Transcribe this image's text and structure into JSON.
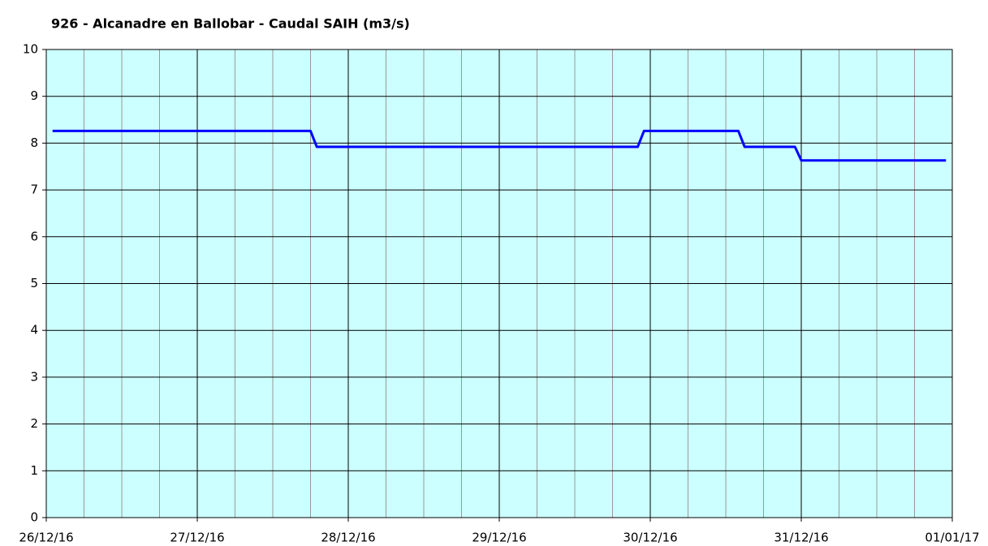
{
  "chart_data": {
    "type": "line",
    "title": "926 - Alcanadre en Ballobar - Caudal SAIH (m3/s)",
    "x": [
      "2016-12-26T01:00",
      "2016-12-27T18:00",
      "2016-12-27T19:00",
      "2016-12-29T22:00",
      "2016-12-29T23:00",
      "2016-12-30T14:00",
      "2016-12-30T15:00",
      "2016-12-30T23:00",
      "2016-12-31T00:00",
      "2016-12-31T23:00"
    ],
    "values": [
      8.26,
      8.26,
      7.92,
      7.92,
      8.26,
      8.26,
      7.92,
      7.92,
      7.63,
      7.63
    ],
    "color": "#0000ff",
    "xlim": [
      "2016-12-26T00:00",
      "2017-01-01T00:00"
    ],
    "xticks": [
      {
        "value": "2016-12-26T00:00",
        "label": "26/12/16"
      },
      {
        "value": "2016-12-27T00:00",
        "label": "27/12/16"
      },
      {
        "value": "2016-12-28T00:00",
        "label": "28/12/16"
      },
      {
        "value": "2016-12-29T00:00",
        "label": "29/12/16"
      },
      {
        "value": "2016-12-30T00:00",
        "label": "30/12/16"
      },
      {
        "value": "2016-12-31T00:00",
        "label": "31/12/16"
      },
      {
        "value": "2017-01-01T00:00",
        "label": "01/01/17"
      }
    ],
    "ylim": [
      0,
      10
    ],
    "yticks": [
      0,
      1,
      2,
      3,
      4,
      5,
      6,
      7,
      8,
      9,
      10
    ],
    "grid": true,
    "background": "#ccffff"
  }
}
